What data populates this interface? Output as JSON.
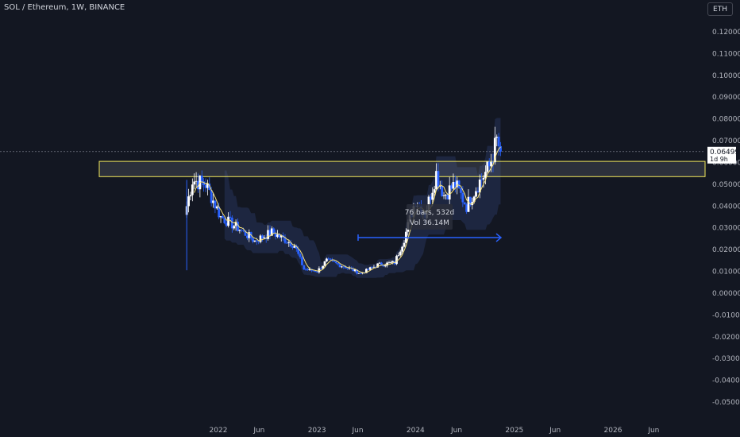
{
  "header": {
    "title": "SOL / Ethereum, 1W, BINANCE",
    "currency": "ETH"
  },
  "price_tag": {
    "price": "0.06499",
    "countdown": "1d 9h"
  },
  "measure_tooltip": {
    "line1": "76 bars, 532d",
    "line2": "Vol 36.14M"
  },
  "colors": {
    "background": "#131722",
    "up_candle": "#ffffff",
    "down_candle": "#2962ff",
    "ma_line": "#f7e27a",
    "zone_border": "#f2e85a",
    "arrow": "#2962ff",
    "band": "#2a3a66"
  },
  "chart_data": {
    "type": "candlestick",
    "title": "SOL / Ethereum, 1W, BINANCE",
    "ylim": [
      -0.055,
      0.125
    ],
    "y_ticks": [
      "0.12000",
      "0.11000",
      "0.10000",
      "0.09000",
      "0.08000",
      "0.07000",
      "0.06000",
      "0.05000",
      "0.04000",
      "0.03000",
      "0.02000",
      "0.01000",
      "0.00000",
      "-0.01000",
      "-0.02000",
      "-0.03000",
      "-0.04000",
      "-0.05000"
    ],
    "x_ticks": [
      {
        "label": "2022",
        "date": "2022-01-01"
      },
      {
        "label": "Jun",
        "date": "2022-06-01"
      },
      {
        "label": "2023",
        "date": "2023-01-01"
      },
      {
        "label": "Jun",
        "date": "2023-06-01"
      },
      {
        "label": "2024",
        "date": "2024-01-01"
      },
      {
        "label": "Jun",
        "date": "2024-06-01"
      },
      {
        "label": "2025",
        "date": "2025-01-01"
      },
      {
        "label": "Jun",
        "date": "2025-06-01"
      },
      {
        "label": "2026",
        "date": "2026-01-01"
      },
      {
        "label": "Jun",
        "date": "2026-06-01"
      }
    ],
    "xlim": [
      "2021-05-15",
      "2026-10-15"
    ],
    "last_price": 0.06499,
    "resistance_zone": {
      "low": 0.0535,
      "high": 0.0605,
      "start": "2021-09-01",
      "end": "2026-10-15"
    },
    "measure_arrow": {
      "price": 0.0255,
      "start": "2023-05-20",
      "end": "2024-11-15"
    },
    "key_points": [
      {
        "date": "2021-09-06",
        "close": 0.04
      },
      {
        "date": "2021-09-27",
        "close": 0.052
      },
      {
        "date": "2021-11-15",
        "close": 0.05
      },
      {
        "date": "2022-01-10",
        "close": 0.035
      },
      {
        "date": "2022-03-14",
        "close": 0.03
      },
      {
        "date": "2022-05-16",
        "close": 0.024
      },
      {
        "date": "2022-07-18",
        "close": 0.028
      },
      {
        "date": "2022-10-10",
        "close": 0.022
      },
      {
        "date": "2022-11-14",
        "close": 0.011
      },
      {
        "date": "2023-01-02",
        "close": 0.01
      },
      {
        "date": "2023-02-06",
        "close": 0.015
      },
      {
        "date": "2023-04-17",
        "close": 0.012
      },
      {
        "date": "2023-06-12",
        "close": 0.009
      },
      {
        "date": "2023-08-14",
        "close": 0.013
      },
      {
        "date": "2023-10-16",
        "close": 0.014
      },
      {
        "date": "2023-11-20",
        "close": 0.025
      },
      {
        "date": "2024-01-01",
        "close": 0.043
      },
      {
        "date": "2024-02-05",
        "close": 0.036
      },
      {
        "date": "2024-03-18",
        "close": 0.055
      },
      {
        "date": "2024-04-15",
        "close": 0.045
      },
      {
        "date": "2024-05-27",
        "close": 0.05
      },
      {
        "date": "2024-07-08",
        "close": 0.04
      },
      {
        "date": "2024-08-19",
        "close": 0.05
      },
      {
        "date": "2024-09-30",
        "close": 0.058
      },
      {
        "date": "2024-10-28",
        "close": 0.07
      },
      {
        "date": "2024-11-11",
        "close": 0.065
      }
    ]
  }
}
